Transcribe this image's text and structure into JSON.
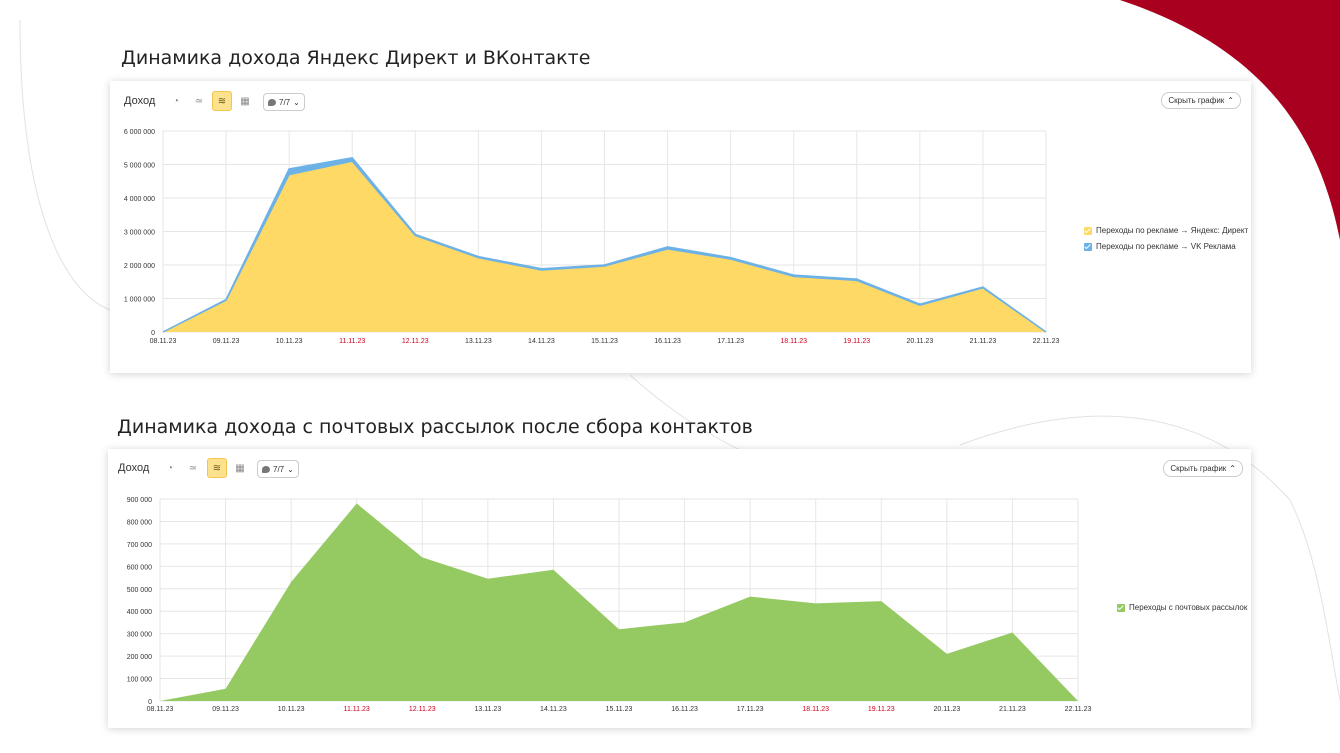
{
  "colors": {
    "accent_red": "#a8001e",
    "yandex_fill": "#ffd966",
    "vk_fill": "#6cb2e6",
    "mail_fill": "#95c962",
    "weekend_tick": "#d0021b",
    "grid": "#e6e6e6"
  },
  "toolbar": {
    "label": "Доход",
    "dropdown": "7/7",
    "hide_button": "Скрыть график",
    "icons": [
      "pie-chart-icon",
      "line-chart-icon",
      "stacked-area-icon",
      "table-icon"
    ]
  },
  "chart_data": [
    {
      "type": "area",
      "stacked": true,
      "title": "Динамика дохода Яндекс Директ и ВКонтакте",
      "categories": [
        "08.11.23",
        "09.11.23",
        "10.11.23",
        "11.11.23",
        "12.11.23",
        "13.11.23",
        "14.11.23",
        "15.11.23",
        "16.11.23",
        "17.11.23",
        "18.11.23",
        "19.11.23",
        "20.11.23",
        "21.11.23",
        "22.11.23"
      ],
      "weekend": [
        false,
        false,
        false,
        true,
        true,
        false,
        false,
        false,
        false,
        false,
        true,
        true,
        false,
        false,
        false
      ],
      "series": [
        {
          "name": "Переходы по рекламе → Яндекс: Директ",
          "color": "#ffd966",
          "values": [
            0,
            950000,
            4700000,
            5100000,
            2880000,
            2220000,
            1850000,
            1970000,
            2480000,
            2180000,
            1660000,
            1540000,
            800000,
            1320000,
            0
          ]
        },
        {
          "name": "Переходы по рекламе → VK Реклама",
          "color": "#6cb2e6",
          "values": [
            0,
            20000,
            170000,
            100000,
            30000,
            30000,
            40000,
            30000,
            60000,
            40000,
            40000,
            40000,
            30000,
            20000,
            0
          ]
        }
      ],
      "ylim": [
        0,
        6000000
      ],
      "yticks": [
        "0",
        "1 000 000",
        "2 000 000",
        "3 000 000",
        "4 000 000",
        "5 000 000",
        "6 000 000"
      ],
      "ytick_values": [
        0,
        1000000,
        2000000,
        3000000,
        4000000,
        5000000,
        6000000
      ],
      "grid": true,
      "legend": "right"
    },
    {
      "type": "area",
      "stacked": true,
      "title": "Динамика дохода с почтовых рассылок после сбора контактов",
      "categories": [
        "08.11.23",
        "09.11.23",
        "10.11.23",
        "11.11.23",
        "12.11.23",
        "13.11.23",
        "14.11.23",
        "15.11.23",
        "16.11.23",
        "17.11.23",
        "18.11.23",
        "19.11.23",
        "20.11.23",
        "21.11.23",
        "22.11.23"
      ],
      "weekend": [
        false,
        false,
        false,
        true,
        true,
        false,
        false,
        false,
        false,
        false,
        true,
        true,
        false,
        false,
        false
      ],
      "series": [
        {
          "name": "Переходы с почтовых рассылок",
          "color": "#95c962",
          "values": [
            0,
            55000,
            530000,
            880000,
            640000,
            545000,
            585000,
            320000,
            350000,
            465000,
            435000,
            445000,
            210000,
            305000,
            0
          ]
        }
      ],
      "ylim": [
        0,
        900000
      ],
      "yticks": [
        "0",
        "100 000",
        "200 000",
        "300 000",
        "400 000",
        "500 000",
        "600 000",
        "700 000",
        "800 000",
        "900 000"
      ],
      "ytick_values": [
        0,
        100000,
        200000,
        300000,
        400000,
        500000,
        600000,
        700000,
        800000,
        900000
      ],
      "grid": true,
      "legend": "right"
    }
  ]
}
